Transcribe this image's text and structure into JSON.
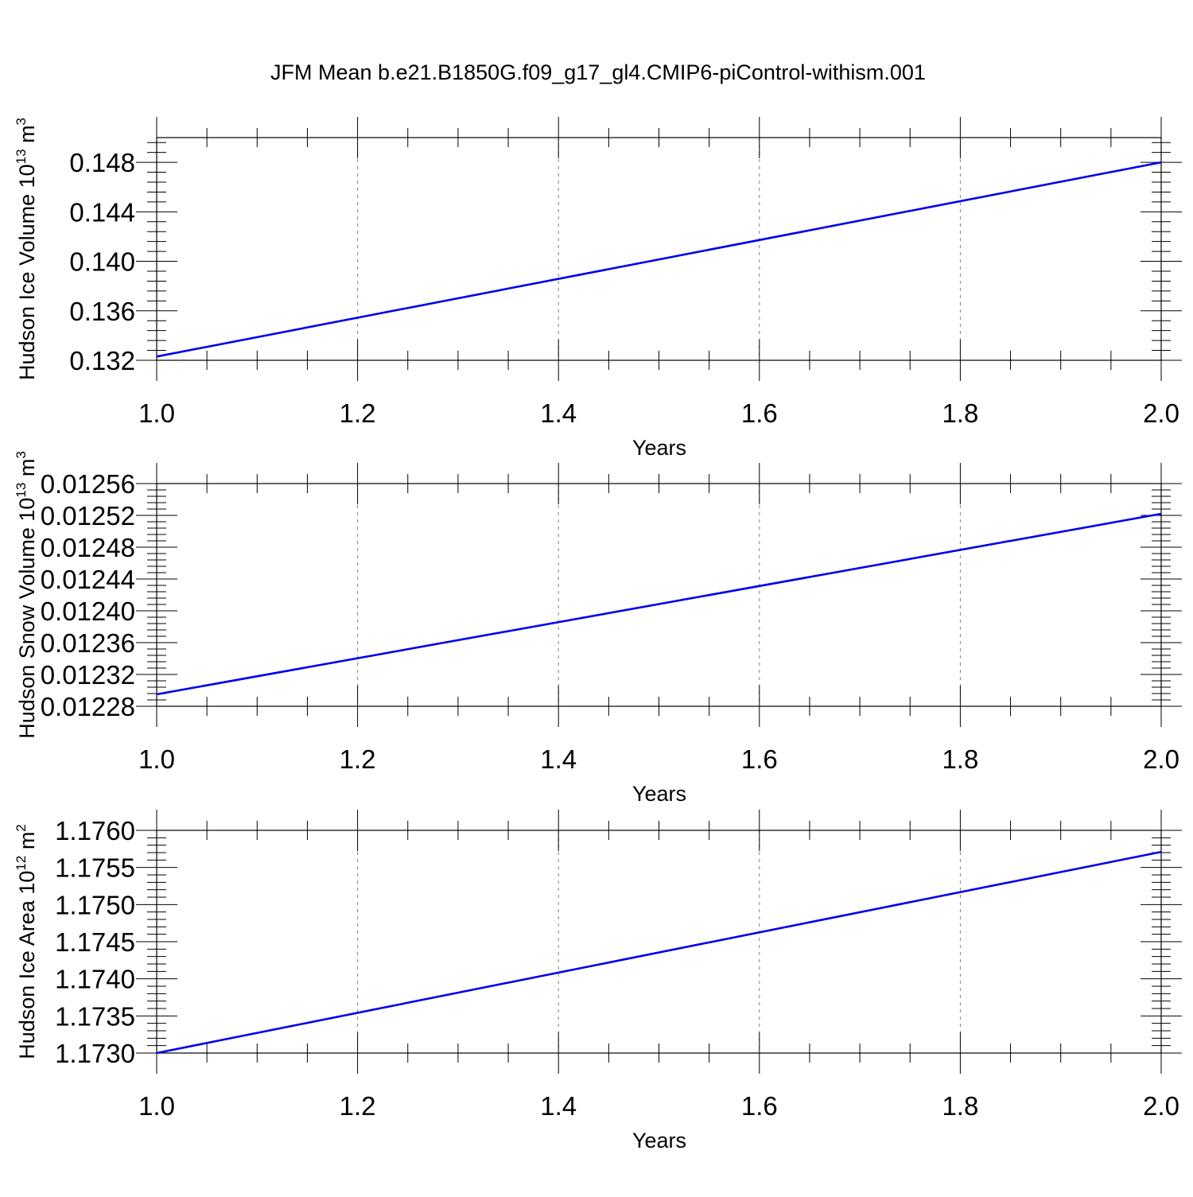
{
  "title": "JFM Mean b.e21.B1850G.f09_g17_gl4.CMIP6-piControl-withism.001",
  "colors": {
    "series": "#0000ee",
    "frame": "#000000",
    "grid": "#7f7f7f",
    "background": "#ffffff"
  },
  "chart_data": [
    {
      "type": "line",
      "xlabel": "Years",
      "ylabel": {
        "main": "Hudson Ice Volume 10",
        "sup": "13",
        "unit": " m",
        "unit_sup": "3"
      },
      "xlim": [
        1.0,
        2.0
      ],
      "ylim": [
        0.132,
        0.15
      ],
      "x_ticks": [
        "1.0",
        "1.2",
        "1.4",
        "1.6",
        "1.8",
        "2.0"
      ],
      "y_ticks": [
        "0.132",
        "0.136",
        "0.140",
        "0.144",
        "0.148"
      ],
      "y_tick_values": [
        0.132,
        0.136,
        0.14,
        0.144,
        0.148
      ],
      "grid": "x-dashed",
      "series": [
        {
          "x": [
            1.0,
            2.0
          ],
          "y": [
            0.1323,
            0.148
          ]
        }
      ]
    },
    {
      "type": "line",
      "xlabel": "Years",
      "ylabel": {
        "main": "Hudson Snow Volume 10",
        "sup": "13",
        "unit": " m",
        "unit_sup": "3"
      },
      "xlim": [
        1.0,
        2.0
      ],
      "ylim": [
        0.01228,
        0.01256
      ],
      "x_ticks": [
        "1.0",
        "1.2",
        "1.4",
        "1.6",
        "1.8",
        "2.0"
      ],
      "y_ticks": [
        "0.01228",
        "0.01232",
        "0.01236",
        "0.01240",
        "0.01244",
        "0.01248",
        "0.01252",
        "0.01256"
      ],
      "y_tick_values": [
        0.01228,
        0.01232,
        0.01236,
        0.0124,
        0.01244,
        0.01248,
        0.01252,
        0.01256
      ],
      "grid": "x-dashed",
      "series": [
        {
          "x": [
            1.0,
            2.0
          ],
          "y": [
            0.012295,
            0.012522
          ]
        }
      ]
    },
    {
      "type": "line",
      "xlabel": "Years",
      "ylabel": {
        "main": "Hudson Ice Area 10",
        "sup": "12",
        "unit": " m",
        "unit_sup": "2"
      },
      "xlim": [
        1.0,
        2.0
      ],
      "ylim": [
        1.173,
        1.176
      ],
      "x_ticks": [
        "1.0",
        "1.2",
        "1.4",
        "1.6",
        "1.8",
        "2.0"
      ],
      "y_ticks": [
        "1.1730",
        "1.1735",
        "1.1740",
        "1.1745",
        "1.1750",
        "1.1755",
        "1.1760"
      ],
      "y_tick_values": [
        1.173,
        1.1735,
        1.174,
        1.1745,
        1.175,
        1.1755,
        1.176
      ],
      "grid": "x-dashed",
      "series": [
        {
          "x": [
            1.0,
            2.0
          ],
          "y": [
            1.173,
            1.17571
          ]
        }
      ]
    }
  ]
}
